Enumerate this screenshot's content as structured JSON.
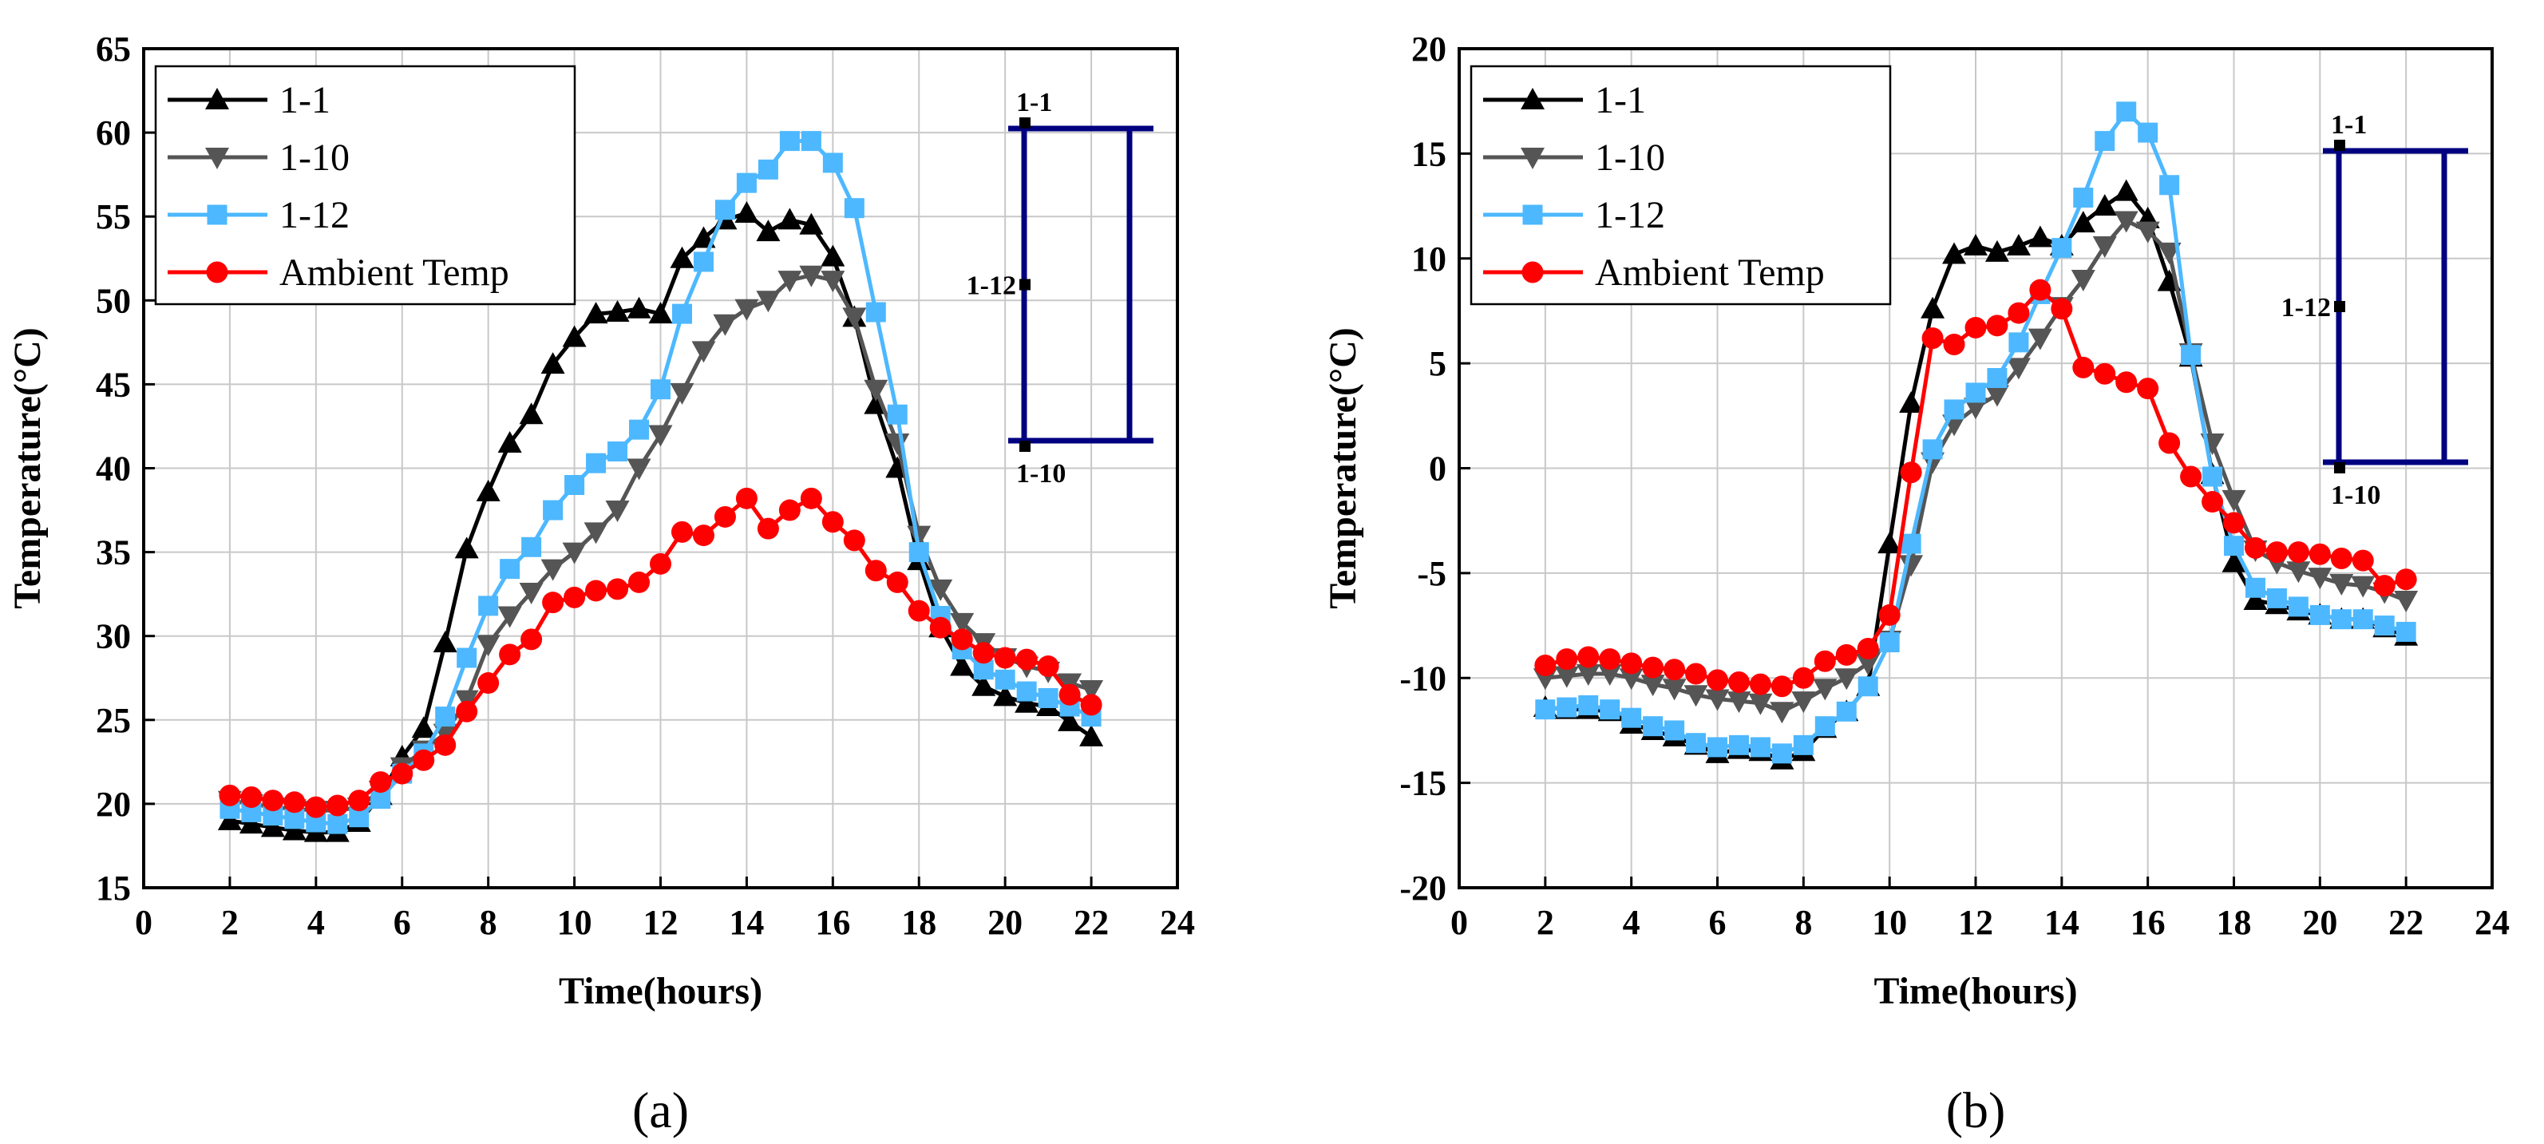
{
  "chart_data": [
    {
      "type": "line",
      "panel_label": "(a)",
      "xlabel": "Time(hours)",
      "ylabel": "Temperature(°C)",
      "xlim": [
        0,
        24
      ],
      "ylim": [
        15,
        65
      ],
      "xticks": [
        0,
        2,
        4,
        6,
        8,
        10,
        12,
        14,
        16,
        18,
        20,
        22,
        24
      ],
      "yticks": [
        15,
        20,
        25,
        30,
        35,
        40,
        45,
        50,
        55,
        60,
        65
      ],
      "grid": true,
      "legend_position": "top-left",
      "x": [
        2,
        2.5,
        3,
        3.5,
        4,
        4.5,
        5,
        5.5,
        6,
        6.5,
        7,
        7.5,
        8,
        8.5,
        9,
        9.5,
        10,
        10.5,
        11,
        11.5,
        12,
        12.5,
        13,
        13.5,
        14,
        14.5,
        15,
        15.5,
        16,
        16.5,
        17,
        17.5,
        18,
        18.5,
        19,
        19.5,
        20,
        20.5,
        21,
        21.5,
        22
      ],
      "series": [
        {
          "name": "1-1",
          "color": "#000000",
          "marker": "triangle-up",
          "values": [
            19.0,
            18.8,
            18.6,
            18.4,
            18.3,
            18.3,
            18.9,
            20.5,
            22.8,
            24.5,
            29.6,
            35.2,
            38.6,
            41.5,
            43.2,
            46.2,
            47.8,
            49.2,
            49.3,
            49.5,
            49.2,
            52.5,
            53.7,
            54.8,
            55.2,
            54.1,
            54.8,
            54.5,
            52.6,
            49.0,
            43.8,
            40.0,
            34.5,
            30.5,
            28.2,
            27.0,
            26.4,
            26.0,
            25.8,
            24.9,
            24.0
          ]
        },
        {
          "name": "1-10",
          "color": "#555555",
          "marker": "triangle-down",
          "values": [
            20.2,
            20.0,
            19.8,
            19.7,
            19.6,
            19.6,
            19.8,
            20.8,
            22.2,
            23.2,
            24.2,
            26.2,
            29.5,
            31.2,
            32.6,
            34.0,
            35.0,
            36.2,
            37.5,
            40.0,
            42.0,
            44.5,
            47.0,
            48.6,
            49.5,
            50.0,
            51.2,
            51.5,
            51.2,
            49.0,
            44.7,
            41.5,
            36.0,
            32.8,
            30.8,
            29.6,
            28.7,
            28.2,
            27.9,
            27.2,
            26.8
          ]
        },
        {
          "name": "1-12",
          "color": "#4db8ff",
          "marker": "square",
          "values": [
            19.7,
            19.5,
            19.3,
            19.1,
            18.9,
            18.8,
            19.2,
            20.3,
            21.8,
            23.0,
            25.2,
            28.7,
            31.8,
            34.0,
            35.3,
            37.5,
            39.0,
            40.3,
            41.0,
            42.3,
            44.7,
            49.2,
            52.3,
            55.4,
            57.0,
            57.8,
            59.5,
            59.5,
            58.2,
            55.5,
            49.3,
            43.2,
            35.0,
            31.2,
            29.2,
            28.0,
            27.4,
            26.7,
            26.3,
            25.8,
            25.2
          ]
        },
        {
          "name": "Ambient Temp",
          "color": "#ff0000",
          "marker": "circle",
          "values": [
            20.5,
            20.4,
            20.2,
            20.1,
            19.8,
            19.9,
            20.2,
            21.3,
            21.8,
            22.6,
            23.5,
            25.5,
            27.2,
            28.9,
            29.8,
            32.0,
            32.3,
            32.7,
            32.8,
            33.2,
            34.3,
            36.2,
            36.0,
            37.1,
            38.2,
            36.4,
            37.5,
            38.2,
            36.8,
            35.7,
            33.9,
            33.2,
            31.5,
            30.5,
            29.8,
            29.0,
            28.7,
            28.6,
            28.2,
            26.5,
            25.9
          ]
        }
      ],
      "inset": {
        "top_label": "1-1",
        "middle_label": "1-12",
        "bottom_label": "1-10",
        "color": "#000080"
      }
    },
    {
      "type": "line",
      "panel_label": "(b)",
      "xlabel": "Time(hours)",
      "ylabel": "Temperature(°C)",
      "xlim": [
        0,
        24
      ],
      "ylim": [
        -20,
        20
      ],
      "xticks": [
        0,
        2,
        4,
        6,
        8,
        10,
        12,
        14,
        16,
        18,
        20,
        22,
        24
      ],
      "yticks": [
        -20,
        -15,
        -10,
        -5,
        0,
        5,
        10,
        15,
        20
      ],
      "grid": true,
      "legend_position": "top-left",
      "x": [
        2,
        2.5,
        3,
        3.5,
        4,
        4.5,
        5,
        5.5,
        6,
        6.5,
        7,
        7.5,
        8,
        8.5,
        9,
        9.5,
        10,
        10.5,
        11,
        11.5,
        12,
        12.5,
        13,
        13.5,
        14,
        14.5,
        15,
        15.5,
        16,
        16.5,
        17,
        17.5,
        18,
        18.5,
        19,
        19.5,
        20,
        20.5,
        21,
        21.5,
        22
      ],
      "series": [
        {
          "name": "1-1",
          "color": "#000000",
          "marker": "triangle-up",
          "values": [
            -11.4,
            -11.5,
            -11.5,
            -11.6,
            -12.2,
            -12.5,
            -12.8,
            -13.2,
            -13.6,
            -13.4,
            -13.5,
            -13.9,
            -13.5,
            -12.4,
            -11.6,
            -10.4,
            -3.6,
            3.1,
            7.6,
            10.2,
            10.6,
            10.3,
            10.6,
            11.0,
            10.6,
            11.7,
            12.5,
            13.2,
            11.9,
            8.9,
            5.3,
            -0.3,
            -4.5,
            -6.3,
            -6.5,
            -6.8,
            -7.0,
            -7.2,
            -7.2,
            -7.6,
            -8.0
          ]
        },
        {
          "name": "1-10",
          "color": "#555555",
          "marker": "triangle-down",
          "values": [
            -10.0,
            -9.9,
            -9.8,
            -9.8,
            -10.0,
            -10.3,
            -10.5,
            -10.8,
            -11.0,
            -11.1,
            -11.2,
            -11.6,
            -11.1,
            -10.5,
            -10.0,
            -9.3,
            -8.2,
            -4.6,
            0.3,
            2.1,
            2.9,
            3.5,
            4.8,
            6.2,
            7.7,
            9.0,
            10.6,
            11.8,
            11.3,
            10.3,
            5.5,
            1.2,
            -1.5,
            -3.9,
            -4.5,
            -4.9,
            -5.2,
            -5.5,
            -5.6,
            -5.9,
            -6.3
          ]
        },
        {
          "name": "1-12",
          "color": "#4db8ff",
          "marker": "square",
          "values": [
            -11.5,
            -11.4,
            -11.3,
            -11.5,
            -11.9,
            -12.3,
            -12.5,
            -13.1,
            -13.3,
            -13.2,
            -13.3,
            -13.6,
            -13.2,
            -12.3,
            -11.6,
            -10.4,
            -8.3,
            -3.6,
            0.9,
            2.8,
            3.6,
            4.3,
            6.0,
            8.3,
            10.5,
            12.9,
            15.6,
            17.0,
            16.0,
            13.5,
            5.4,
            -0.4,
            -3.7,
            -5.7,
            -6.2,
            -6.6,
            -7.0,
            -7.2,
            -7.2,
            -7.5,
            -7.8
          ]
        },
        {
          "name": "Ambient Temp",
          "color": "#ff0000",
          "marker": "circle",
          "values": [
            -9.4,
            -9.1,
            -9.0,
            -9.1,
            -9.3,
            -9.5,
            -9.6,
            -9.8,
            -10.1,
            -10.2,
            -10.3,
            -10.4,
            -10.0,
            -9.2,
            -8.9,
            -8.6,
            -7.0,
            -0.2,
            6.2,
            5.9,
            6.7,
            6.8,
            7.4,
            8.5,
            7.6,
            4.8,
            4.5,
            4.1,
            3.8,
            1.2,
            -0.4,
            -1.6,
            -2.6,
            -3.8,
            -4.0,
            -4.0,
            -4.1,
            -4.3,
            -4.4,
            -5.6,
            -5.3
          ]
        }
      ],
      "inset": {
        "top_label": "1-1",
        "middle_label": "1-12",
        "bottom_label": "1-10",
        "color": "#000080"
      }
    }
  ]
}
